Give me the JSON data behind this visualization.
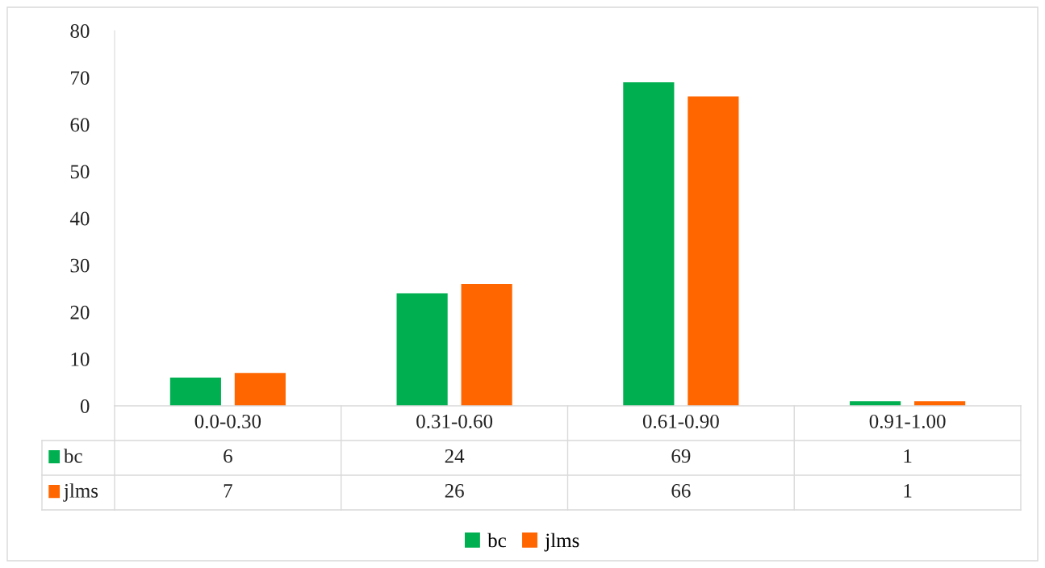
{
  "chart_data": {
    "type": "bar",
    "categories": [
      "0.0-0.30",
      "0.31-0.60",
      "0.61-0.90",
      "0.91-1.00"
    ],
    "series": [
      {
        "name": "bc",
        "color": "#00b050",
        "values": [
          6,
          24,
          69,
          1
        ]
      },
      {
        "name": "jlms",
        "color": "#ff6600",
        "values": [
          7,
          26,
          66,
          1
        ]
      }
    ],
    "ylim": [
      0,
      80
    ],
    "yticks": [
      0,
      10,
      20,
      30,
      40,
      50,
      60,
      70,
      80
    ],
    "grid": false,
    "legend": "bottom",
    "data_labels": true
  }
}
